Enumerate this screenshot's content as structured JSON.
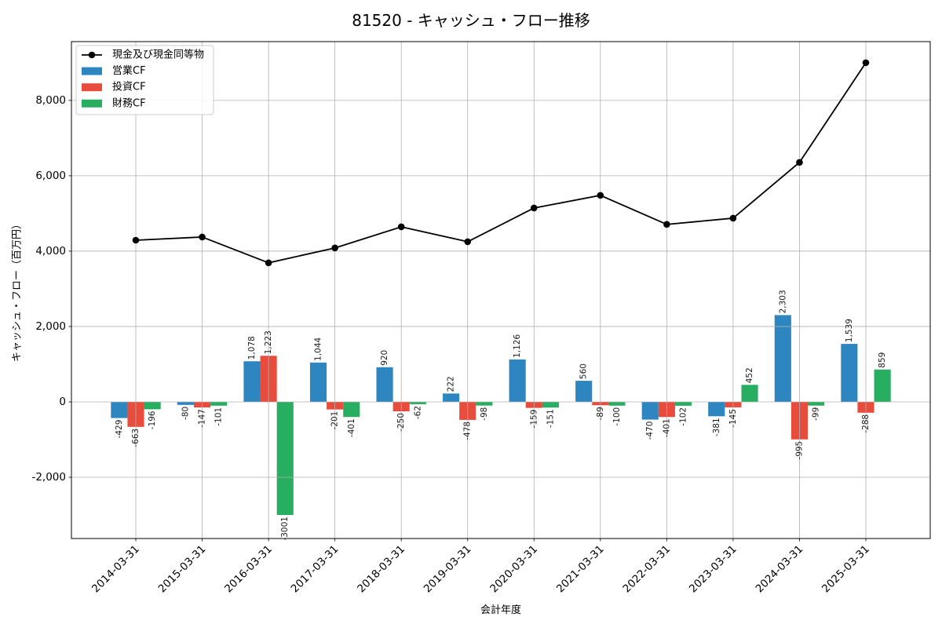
{
  "chart_data": {
    "type": "bar",
    "title": "81520 - キャッシュ・フロー推移",
    "xlabel": "会計年度",
    "ylabel": "キャッシュ・フロー（百万円）",
    "categories": [
      "2014-03-31",
      "2015-03-31",
      "2016-03-31",
      "2017-03-31",
      "2018-03-31",
      "2019-03-31",
      "2020-03-31",
      "2021-03-31",
      "2022-03-31",
      "2023-03-31",
      "2024-03-31",
      "2025-03-31"
    ],
    "ylim": [
      -3625,
      9560
    ],
    "yticks": [
      -2000,
      0,
      2000,
      4000,
      6000,
      8000
    ],
    "ytick_labels": [
      "-2,000",
      "0",
      "2,000",
      "4,000",
      "6,000",
      "8,000"
    ],
    "grid": true,
    "legend_position": "top-left",
    "series": [
      {
        "name": "現金及び現金同等物",
        "type": "line",
        "color": "#000000",
        "values": [
          4290,
          4375,
          3690,
          4085,
          4645,
          4250,
          5145,
          5480,
          4710,
          4875,
          6355,
          9000
        ]
      },
      {
        "name": "営業CF",
        "type": "bar",
        "color": "#2e86c1",
        "values": [
          -429,
          -80,
          1078,
          1044,
          920,
          222,
          1126,
          560,
          -470,
          -381,
          2303,
          1539
        ],
        "labels": [
          "-429",
          "-80",
          "1,078",
          "1,044",
          "920",
          "222",
          "1,126",
          "560",
          "-470",
          "-381",
          "2,303",
          "1,539"
        ]
      },
      {
        "name": "投資CF",
        "type": "bar",
        "color": "#e74c3c",
        "values": [
          -663,
          -147,
          1223,
          -201,
          -250,
          -478,
          -159,
          -89,
          -401,
          -145,
          -995,
          -288
        ],
        "labels": [
          "-663",
          "-147",
          "1,223",
          "-201",
          "-250",
          "-478",
          "-159",
          "-89",
          "-401",
          "-145",
          "-995",
          "-288"
        ]
      },
      {
        "name": "財務CF",
        "type": "bar",
        "color": "#27ae60",
        "values": [
          -196,
          -101,
          -3001,
          -401,
          -62,
          -98,
          -151,
          -100,
          -102,
          452,
          -99,
          859
        ],
        "labels": [
          "-196",
          "-101",
          "-3001",
          "-401",
          "-62",
          "-98",
          "-151",
          "-100",
          "-102",
          "452",
          "-99",
          "859"
        ]
      }
    ]
  }
}
